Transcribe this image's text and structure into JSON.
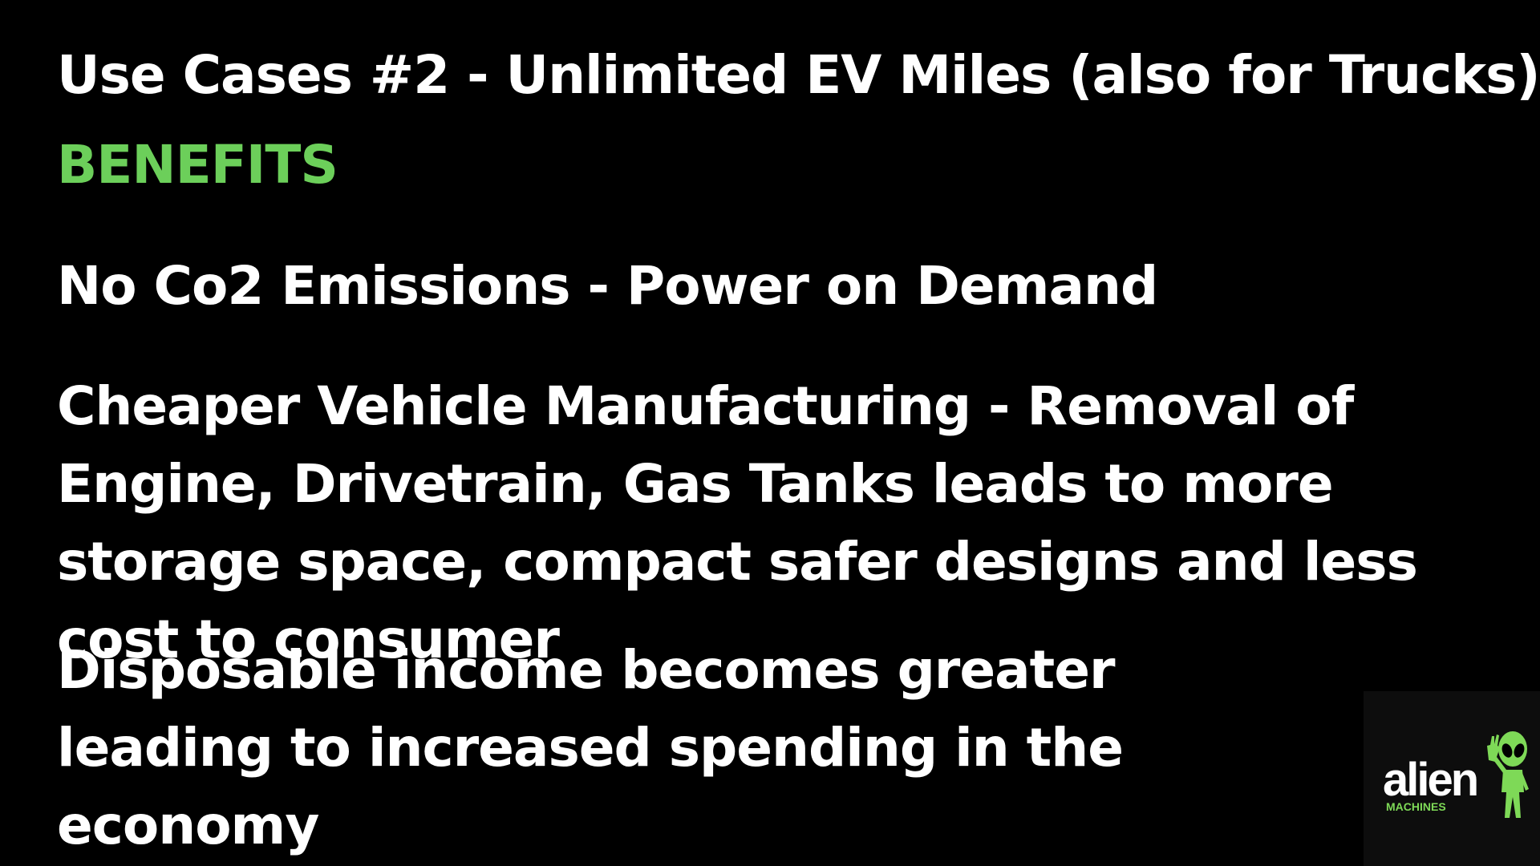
{
  "slide": {
    "title": "Use Cases #2 - Unlimited EV Miles (also for Trucks)",
    "section_heading": "BENEFITS",
    "points": [
      "No Co2 Emissions - Power on Demand",
      "Cheaper Vehicle Manufacturing - Removal of Engine, Drivetrain, Gas Tanks leads to more storage space, compact safer designs and less cost to consumer",
      "Disposable income becomes greater leading to increased spending in the economy"
    ]
  },
  "logo": {
    "wordmark": "alien",
    "subtitle": "MACHINES",
    "icon": "alien-waving-icon"
  },
  "colors": {
    "background": "#000000",
    "text": "#ffffff",
    "accent": "#6ccf5a"
  }
}
